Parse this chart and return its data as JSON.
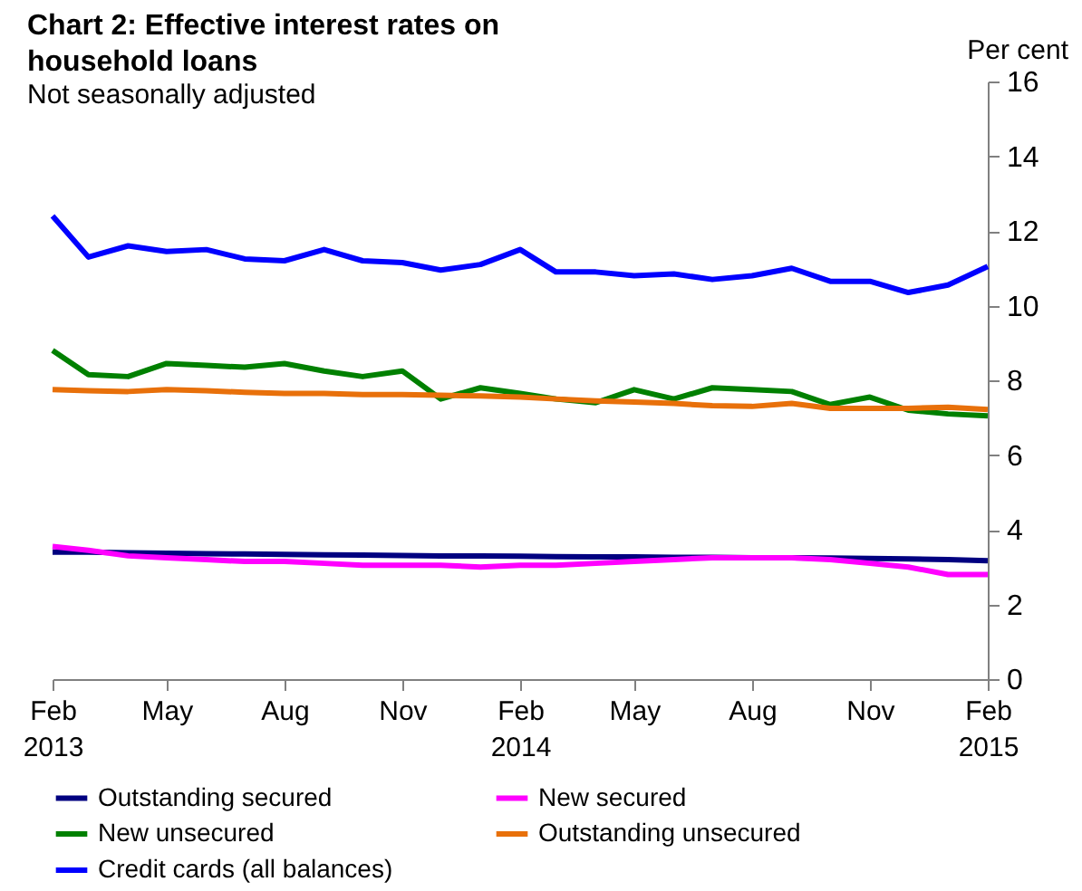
{
  "chart_data": {
    "type": "line",
    "title": "Chart 2: Effective interest rates on household loans",
    "subtitle": "Not seasonally adjusted",
    "ylabel": "Per cent",
    "x": [
      "2013-02",
      "2013-03",
      "2013-04",
      "2013-05",
      "2013-06",
      "2013-07",
      "2013-08",
      "2013-09",
      "2013-10",
      "2013-11",
      "2013-12",
      "2014-01",
      "2014-02",
      "2014-03",
      "2014-04",
      "2014-05",
      "2014-06",
      "2014-07",
      "2014-08",
      "2014-09",
      "2014-10",
      "2014-11",
      "2014-12",
      "2015-01",
      "2015-02"
    ],
    "xlim": [
      "2013-02",
      "2015-02"
    ],
    "xticks": [
      {
        "value": "2013-02",
        "label": "Feb\n2013"
      },
      {
        "value": "2013-05",
        "label": "May"
      },
      {
        "value": "2013-08",
        "label": "Aug"
      },
      {
        "value": "2013-11",
        "label": "Nov"
      },
      {
        "value": "2014-02",
        "label": "Feb\n2014"
      },
      {
        "value": "2014-05",
        "label": "May"
      },
      {
        "value": "2014-08",
        "label": "Aug"
      },
      {
        "value": "2014-11",
        "label": "Nov"
      },
      {
        "value": "2015-02",
        "label": "Feb\n2015"
      }
    ],
    "ylim": [
      0,
      16
    ],
    "yticks": [
      0,
      2,
      4,
      6,
      8,
      10,
      12,
      14,
      16
    ],
    "grid": false,
    "legend": "bottom",
    "marker": "none",
    "line_style": "solid",
    "series": [
      {
        "name": "Outstanding secured",
        "color": "#000080",
        "values": [
          3.4,
          3.4,
          3.38,
          3.37,
          3.36,
          3.35,
          3.34,
          3.33,
          3.32,
          3.31,
          3.3,
          3.3,
          3.29,
          3.28,
          3.27,
          3.27,
          3.26,
          3.26,
          3.25,
          3.25,
          3.24,
          3.23,
          3.22,
          3.2,
          3.17
        ]
      },
      {
        "name": "New secured",
        "color": "#ff00ff",
        "values": [
          3.55,
          3.45,
          3.3,
          3.25,
          3.2,
          3.15,
          3.15,
          3.1,
          3.05,
          3.05,
          3.05,
          3.0,
          3.05,
          3.05,
          3.1,
          3.15,
          3.2,
          3.25,
          3.25,
          3.25,
          3.2,
          3.1,
          3.0,
          2.8,
          2.8
        ]
      },
      {
        "name": "New unsecured",
        "color": "#008000",
        "values": [
          8.8,
          8.15,
          8.1,
          8.45,
          8.4,
          8.35,
          8.45,
          8.25,
          8.1,
          8.25,
          7.5,
          7.8,
          7.65,
          7.5,
          7.4,
          7.75,
          7.5,
          7.8,
          7.75,
          7.7,
          7.35,
          7.55,
          7.2,
          7.1,
          7.05
        ]
      },
      {
        "name": "Outstanding unsecured",
        "color": "#e8700a",
        "values": [
          7.75,
          7.72,
          7.7,
          7.75,
          7.72,
          7.68,
          7.65,
          7.65,
          7.62,
          7.62,
          7.6,
          7.58,
          7.55,
          7.5,
          7.45,
          7.42,
          7.38,
          7.32,
          7.3,
          7.38,
          7.25,
          7.25,
          7.25,
          7.28,
          7.22
        ]
      },
      {
        "name": "Credit cards (all balances)",
        "color": "#0000ff",
        "values": [
          12.4,
          11.3,
          11.6,
          11.45,
          11.5,
          11.25,
          11.2,
          11.5,
          11.2,
          11.15,
          10.95,
          11.1,
          11.5,
          10.9,
          10.9,
          10.8,
          10.85,
          10.7,
          10.8,
          11.0,
          10.65,
          10.65,
          10.35,
          10.55,
          11.05
        ]
      }
    ]
  }
}
